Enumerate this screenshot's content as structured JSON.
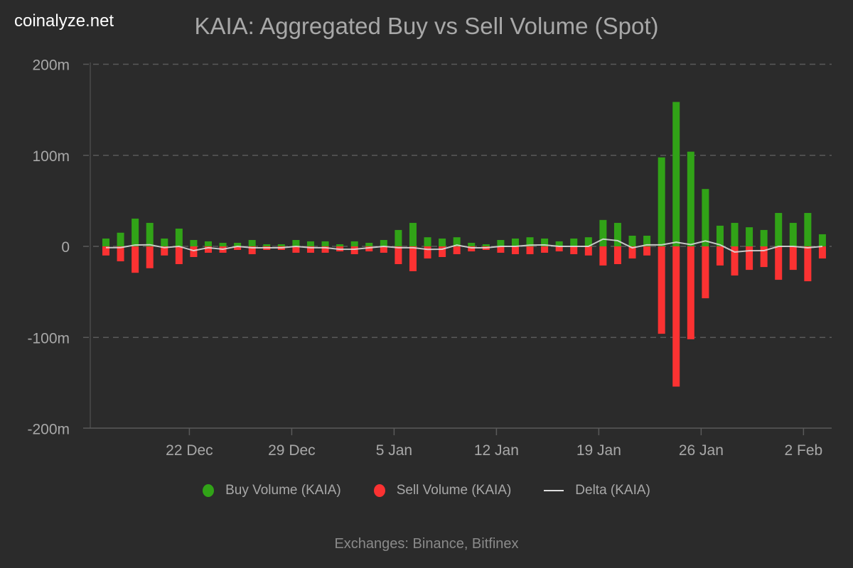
{
  "brand": "coinalyze.net",
  "colors": {
    "buy": "#31a317",
    "sell": "#fb3232",
    "delta": "#e0e0e0",
    "background": "#2b2b2b",
    "grid": "#5a5a5a"
  },
  "chart_data": {
    "type": "bar",
    "title": "KAIA: Aggregated Buy vs Sell Volume (Spot)",
    "footer": "Exchanges: Binance, Bitfinex",
    "ylim": [
      -200,
      200
    ],
    "yunit": "m",
    "yticks": [
      {
        "v": 200,
        "label": "200m"
      },
      {
        "v": 100,
        "label": "100m"
      },
      {
        "v": 0,
        "label": "0"
      },
      {
        "v": -100,
        "label": "-100m"
      },
      {
        "v": -200,
        "label": "-200m"
      }
    ],
    "grid": "horizontal dashed",
    "legend_position": "bottom",
    "x": [
      "16 Dec",
      "17 Dec",
      "18 Dec",
      "19 Dec",
      "20 Dec",
      "21 Dec",
      "22 Dec",
      "23 Dec",
      "24 Dec",
      "25 Dec",
      "26 Dec",
      "27 Dec",
      "28 Dec",
      "29 Dec",
      "30 Dec",
      "31 Dec",
      "1 Jan",
      "2 Jan",
      "3 Jan",
      "4 Jan",
      "5 Jan",
      "6 Jan",
      "7 Jan",
      "8 Jan",
      "9 Jan",
      "10 Jan",
      "11 Jan",
      "12 Jan",
      "13 Jan",
      "14 Jan",
      "15 Jan",
      "16 Jan",
      "17 Jan",
      "18 Jan",
      "19 Jan",
      "20 Jan",
      "21 Jan",
      "22 Jan",
      "23 Jan",
      "24 Jan",
      "25 Jan",
      "26 Jan",
      "27 Jan",
      "28 Jan",
      "29 Jan",
      "30 Jan",
      "31 Jan",
      "1 Feb",
      "2 Feb",
      "3 Feb"
    ],
    "xticks": [
      {
        "i": 6,
        "label": "22 Dec"
      },
      {
        "i": 13,
        "label": "29 Dec"
      },
      {
        "i": 20,
        "label": "5 Jan"
      },
      {
        "i": 27,
        "label": "12 Jan"
      },
      {
        "i": 34,
        "label": "19 Jan"
      },
      {
        "i": 41,
        "label": "26 Jan"
      },
      {
        "i": 48,
        "label": "2 Feb"
      }
    ],
    "series": [
      {
        "name": "Buy Volume (KAIA)",
        "type": "bar",
        "values": [
          8.6,
          15,
          30.5,
          25.8,
          8.6,
          19.5,
          7,
          5.5,
          3.9,
          3.9,
          7,
          2.3,
          2.3,
          7,
          5.5,
          5.5,
          2.3,
          5.5,
          3.9,
          7,
          18,
          25.8,
          10,
          8.6,
          10,
          3.9,
          2.3,
          7,
          8.6,
          10,
          8.6,
          5.5,
          8.6,
          10,
          29,
          25.8,
          11.7,
          11.7,
          97.7,
          158.6,
          104,
          63,
          22.7,
          25.8,
          21,
          18,
          36.7,
          25.8,
          36.7,
          13.3
        ]
      },
      {
        "name": "Sell Volume (KAIA)",
        "type": "bar",
        "values": [
          -10,
          -16.4,
          -29,
          -24,
          -10,
          -19.5,
          -11.7,
          -7,
          -7,
          -3.9,
          -8.6,
          -3.9,
          -3.9,
          -7,
          -7,
          -7,
          -5.5,
          -8.6,
          -5.5,
          -7,
          -19.5,
          -27.3,
          -13.3,
          -11.7,
          -8.6,
          -5.5,
          -3.9,
          -7,
          -8.6,
          -8.6,
          -7,
          -5.5,
          -8.6,
          -10,
          -21,
          -19.5,
          -13.3,
          -10,
          -96,
          -154,
          -102,
          -57,
          -21,
          -32,
          -25.8,
          -22.7,
          -36.7,
          -25.8,
          -38.3,
          -13.3
        ]
      },
      {
        "name": "Delta (KAIA)",
        "type": "line",
        "values": [
          -1.4,
          -1.4,
          1.5,
          1.8,
          -1.4,
          0,
          -4.7,
          -1.5,
          -3.1,
          0,
          -1.6,
          -1.6,
          -1.6,
          0,
          -1.5,
          -1.5,
          -3.2,
          -3.1,
          -1.6,
          0,
          -1.5,
          -1.5,
          -3.3,
          -3.1,
          1.4,
          -1.6,
          -1.6,
          0,
          0,
          1.4,
          1.6,
          0,
          0,
          0,
          8,
          6.3,
          -1.6,
          1.7,
          1.7,
          4.6,
          2,
          6,
          1.7,
          -6.2,
          -4.8,
          -4.7,
          0,
          0,
          -1.6,
          0
        ]
      }
    ]
  }
}
